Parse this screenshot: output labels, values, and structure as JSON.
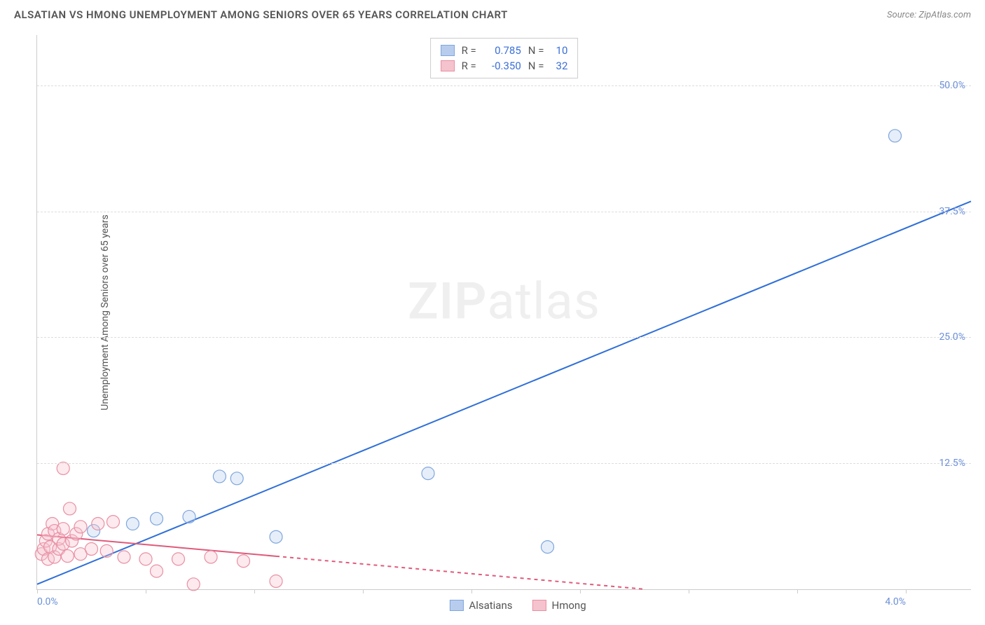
{
  "header": {
    "title": "ALSATIAN VS HMONG UNEMPLOYMENT AMONG SENIORS OVER 65 YEARS CORRELATION CHART",
    "source_prefix": "Source: ",
    "source": "ZipAtlas.com"
  },
  "chart": {
    "type": "scatter-with-regression",
    "ylabel": "Unemployment Among Seniors over 65 years",
    "xlim": [
      0.0,
      4.3
    ],
    "ylim": [
      0.0,
      55.0
    ],
    "xticks": [
      0.0,
      0.5,
      1.0,
      1.5,
      2.0,
      2.5,
      3.0,
      3.5,
      4.0
    ],
    "xticklabels_shown": {
      "0.0": "0.0%",
      "4.0": "4.0%"
    },
    "yticks": [
      12.5,
      25.0,
      37.5,
      50.0
    ],
    "yticklabels": [
      "12.5%",
      "25.0%",
      "37.5%",
      "50.0%"
    ],
    "grid_color": "#dddddd",
    "axis_color": "#cccccc",
    "background_color": "#ffffff",
    "tick_label_color": "#6a8fd8",
    "ylabel_color": "#555555",
    "marker_radius": 9,
    "marker_stroke_width": 1.2,
    "marker_fill_opacity": 0.35,
    "line_width": 2,
    "dash_pattern": "5,5",
    "series": [
      {
        "name": "Alsatians",
        "color_fill": "#b8cdee",
        "color_stroke": "#7fa6de",
        "line_color": "#2f6fd8",
        "R": "0.785",
        "N": "10",
        "points": [
          [
            0.26,
            5.8
          ],
          [
            0.44,
            6.5
          ],
          [
            0.55,
            7.0
          ],
          [
            0.7,
            7.2
          ],
          [
            0.84,
            11.2
          ],
          [
            0.92,
            11.0
          ],
          [
            1.1,
            5.2
          ],
          [
            1.8,
            11.5
          ],
          [
            2.35,
            4.2
          ],
          [
            3.95,
            45.0
          ]
        ],
        "regression": {
          "x1": 0.0,
          "y1": 0.5,
          "x2": 4.3,
          "y2": 38.5,
          "solid_until_x": 4.3
        }
      },
      {
        "name": "Hmong",
        "color_fill": "#f5c3cd",
        "color_stroke": "#e98fa3",
        "line_color": "#e05a7a",
        "R": "-0.350",
        "N": "32",
        "points": [
          [
            0.02,
            3.5
          ],
          [
            0.03,
            4.0
          ],
          [
            0.04,
            4.8
          ],
          [
            0.05,
            3.0
          ],
          [
            0.05,
            5.5
          ],
          [
            0.06,
            4.2
          ],
          [
            0.07,
            6.5
          ],
          [
            0.08,
            3.2
          ],
          [
            0.08,
            5.8
          ],
          [
            0.1,
            4.0
          ],
          [
            0.1,
            5.0
          ],
          [
            0.12,
            4.5
          ],
          [
            0.12,
            6.0
          ],
          [
            0.12,
            12.0
          ],
          [
            0.14,
            3.3
          ],
          [
            0.15,
            8.0
          ],
          [
            0.16,
            4.8
          ],
          [
            0.18,
            5.5
          ],
          [
            0.2,
            3.5
          ],
          [
            0.2,
            6.2
          ],
          [
            0.25,
            4.0
          ],
          [
            0.28,
            6.5
          ],
          [
            0.32,
            3.8
          ],
          [
            0.35,
            6.7
          ],
          [
            0.4,
            3.2
          ],
          [
            0.5,
            3.0
          ],
          [
            0.55,
            1.8
          ],
          [
            0.65,
            3.0
          ],
          [
            0.72,
            0.5
          ],
          [
            0.8,
            3.2
          ],
          [
            0.95,
            2.8
          ],
          [
            1.1,
            0.8
          ]
        ],
        "regression": {
          "x1": 0.0,
          "y1": 5.4,
          "x2": 2.8,
          "y2": 0.0,
          "solid_until_x": 1.1
        }
      }
    ]
  },
  "stats_legend": {
    "label_R": "R =",
    "label_N": "N ="
  },
  "watermark": {
    "zip": "ZIP",
    "atlas": "atlas"
  }
}
